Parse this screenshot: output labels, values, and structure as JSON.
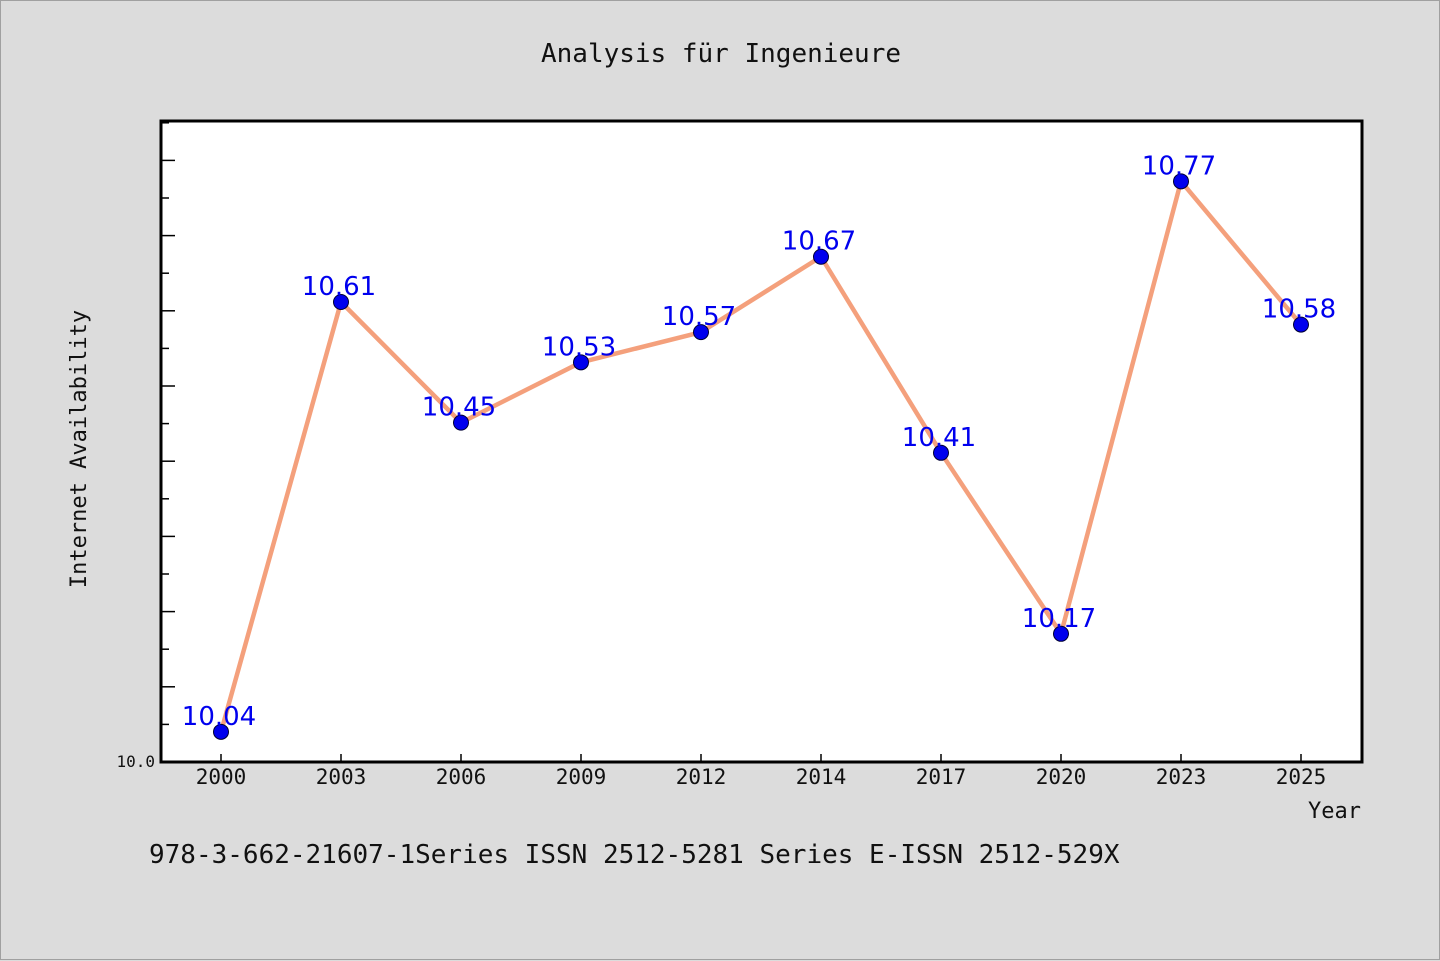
{
  "chart_data": {
    "type": "line",
    "title": "Analysis für Ingenieure",
    "xlabel": "Year",
    "ylabel": "Internet Availability",
    "categories": [
      "2000",
      "2003",
      "2006",
      "2009",
      "2012",
      "2014",
      "2017",
      "2020",
      "2023",
      "2025"
    ],
    "series": [
      {
        "values": [
          10.04,
          10.61,
          10.45,
          10.53,
          10.57,
          10.67,
          10.41,
          10.17,
          10.77,
          10.58
        ]
      }
    ],
    "data_labels": [
      "10.04",
      "10.61",
      "10.45",
      "10.53",
      "10.57",
      "10.67",
      "10.41",
      "10.17",
      "10.77",
      "10.58"
    ],
    "ylim": [
      10.0,
      10.85
    ],
    "yticks_labeled": [
      "10.0"
    ],
    "grid": false,
    "legend": "none",
    "colors": {
      "line": "#f4a07c",
      "marker": "#0000ee",
      "label": "#0000ee",
      "plot_bg": "#ffffff",
      "figure_bg": "#dcdcdc"
    }
  },
  "footer": "978-3-662-21607-1Series ISSN 2512-5281 Series E-ISSN 2512-529X"
}
